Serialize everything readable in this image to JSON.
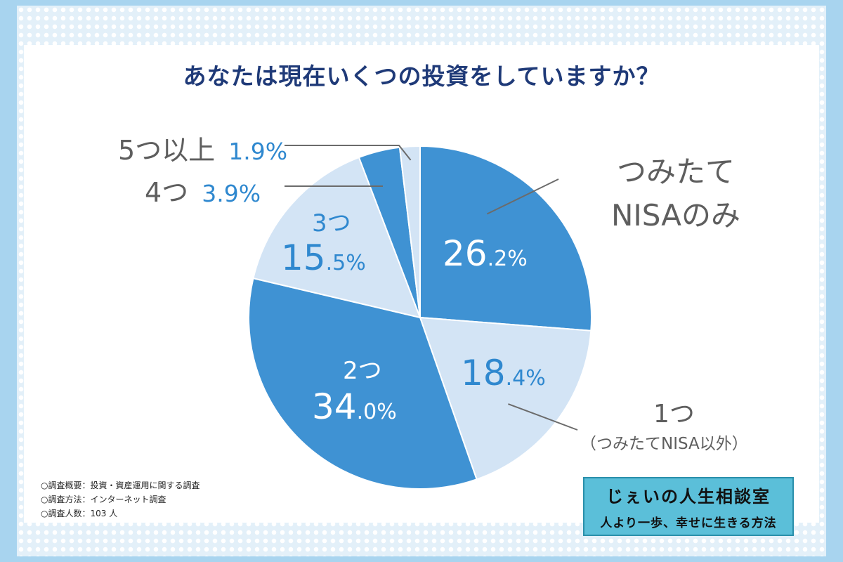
{
  "title": "あなたは現在いくつの投資をしていますか？",
  "chart_data": {
    "type": "pie",
    "title": "あなたは現在いくつの投資をしていますか？",
    "slices": [
      {
        "label": "つみたてNISAのみ",
        "value": 26.2,
        "pct_main": "26",
        "pct_dec": ".2%",
        "color": "#3f92d3"
      },
      {
        "label": "1つ（つみたてNISA以外）",
        "value": 18.4,
        "pct_main": "18",
        "pct_dec": ".4%",
        "color": "#d3e4f5"
      },
      {
        "label": "2つ",
        "value": 34.0,
        "pct_main": "34",
        "pct_dec": ".0%",
        "color": "#3f92d3"
      },
      {
        "label": "3つ",
        "value": 15.5,
        "pct_main": "15",
        "pct_dec": ".5%",
        "color": "#d3e4f5"
      },
      {
        "label": "4つ",
        "value": 3.9,
        "pct_main": "3.9%",
        "pct_dec": "",
        "color": "#3f92d3"
      },
      {
        "label": "5つ以上",
        "value": 1.9,
        "pct_main": "1.9%",
        "pct_dec": "",
        "color": "#d3e4f5"
      }
    ],
    "start_angle": "12 o'clock",
    "direction": "clockwise"
  },
  "labels": {
    "tsumitate_line1": "つみたて",
    "tsumitate_line2": "NISAのみ",
    "one_line1": "1つ",
    "one_line2": "（つみたてNISA以外）",
    "two": "2つ",
    "three": "3つ",
    "four": "4つ",
    "fiveplus": "5つ以上"
  },
  "notes": {
    "line1": "○調査概要：投資・資産運用に関する調査",
    "line2": "○調査方法：インターネット調査",
    "line3": "○調査人数：103 人"
  },
  "logo": {
    "line1": "じぇいの人生相談室",
    "line2": "人より一歩、幸せに生きる方法"
  }
}
